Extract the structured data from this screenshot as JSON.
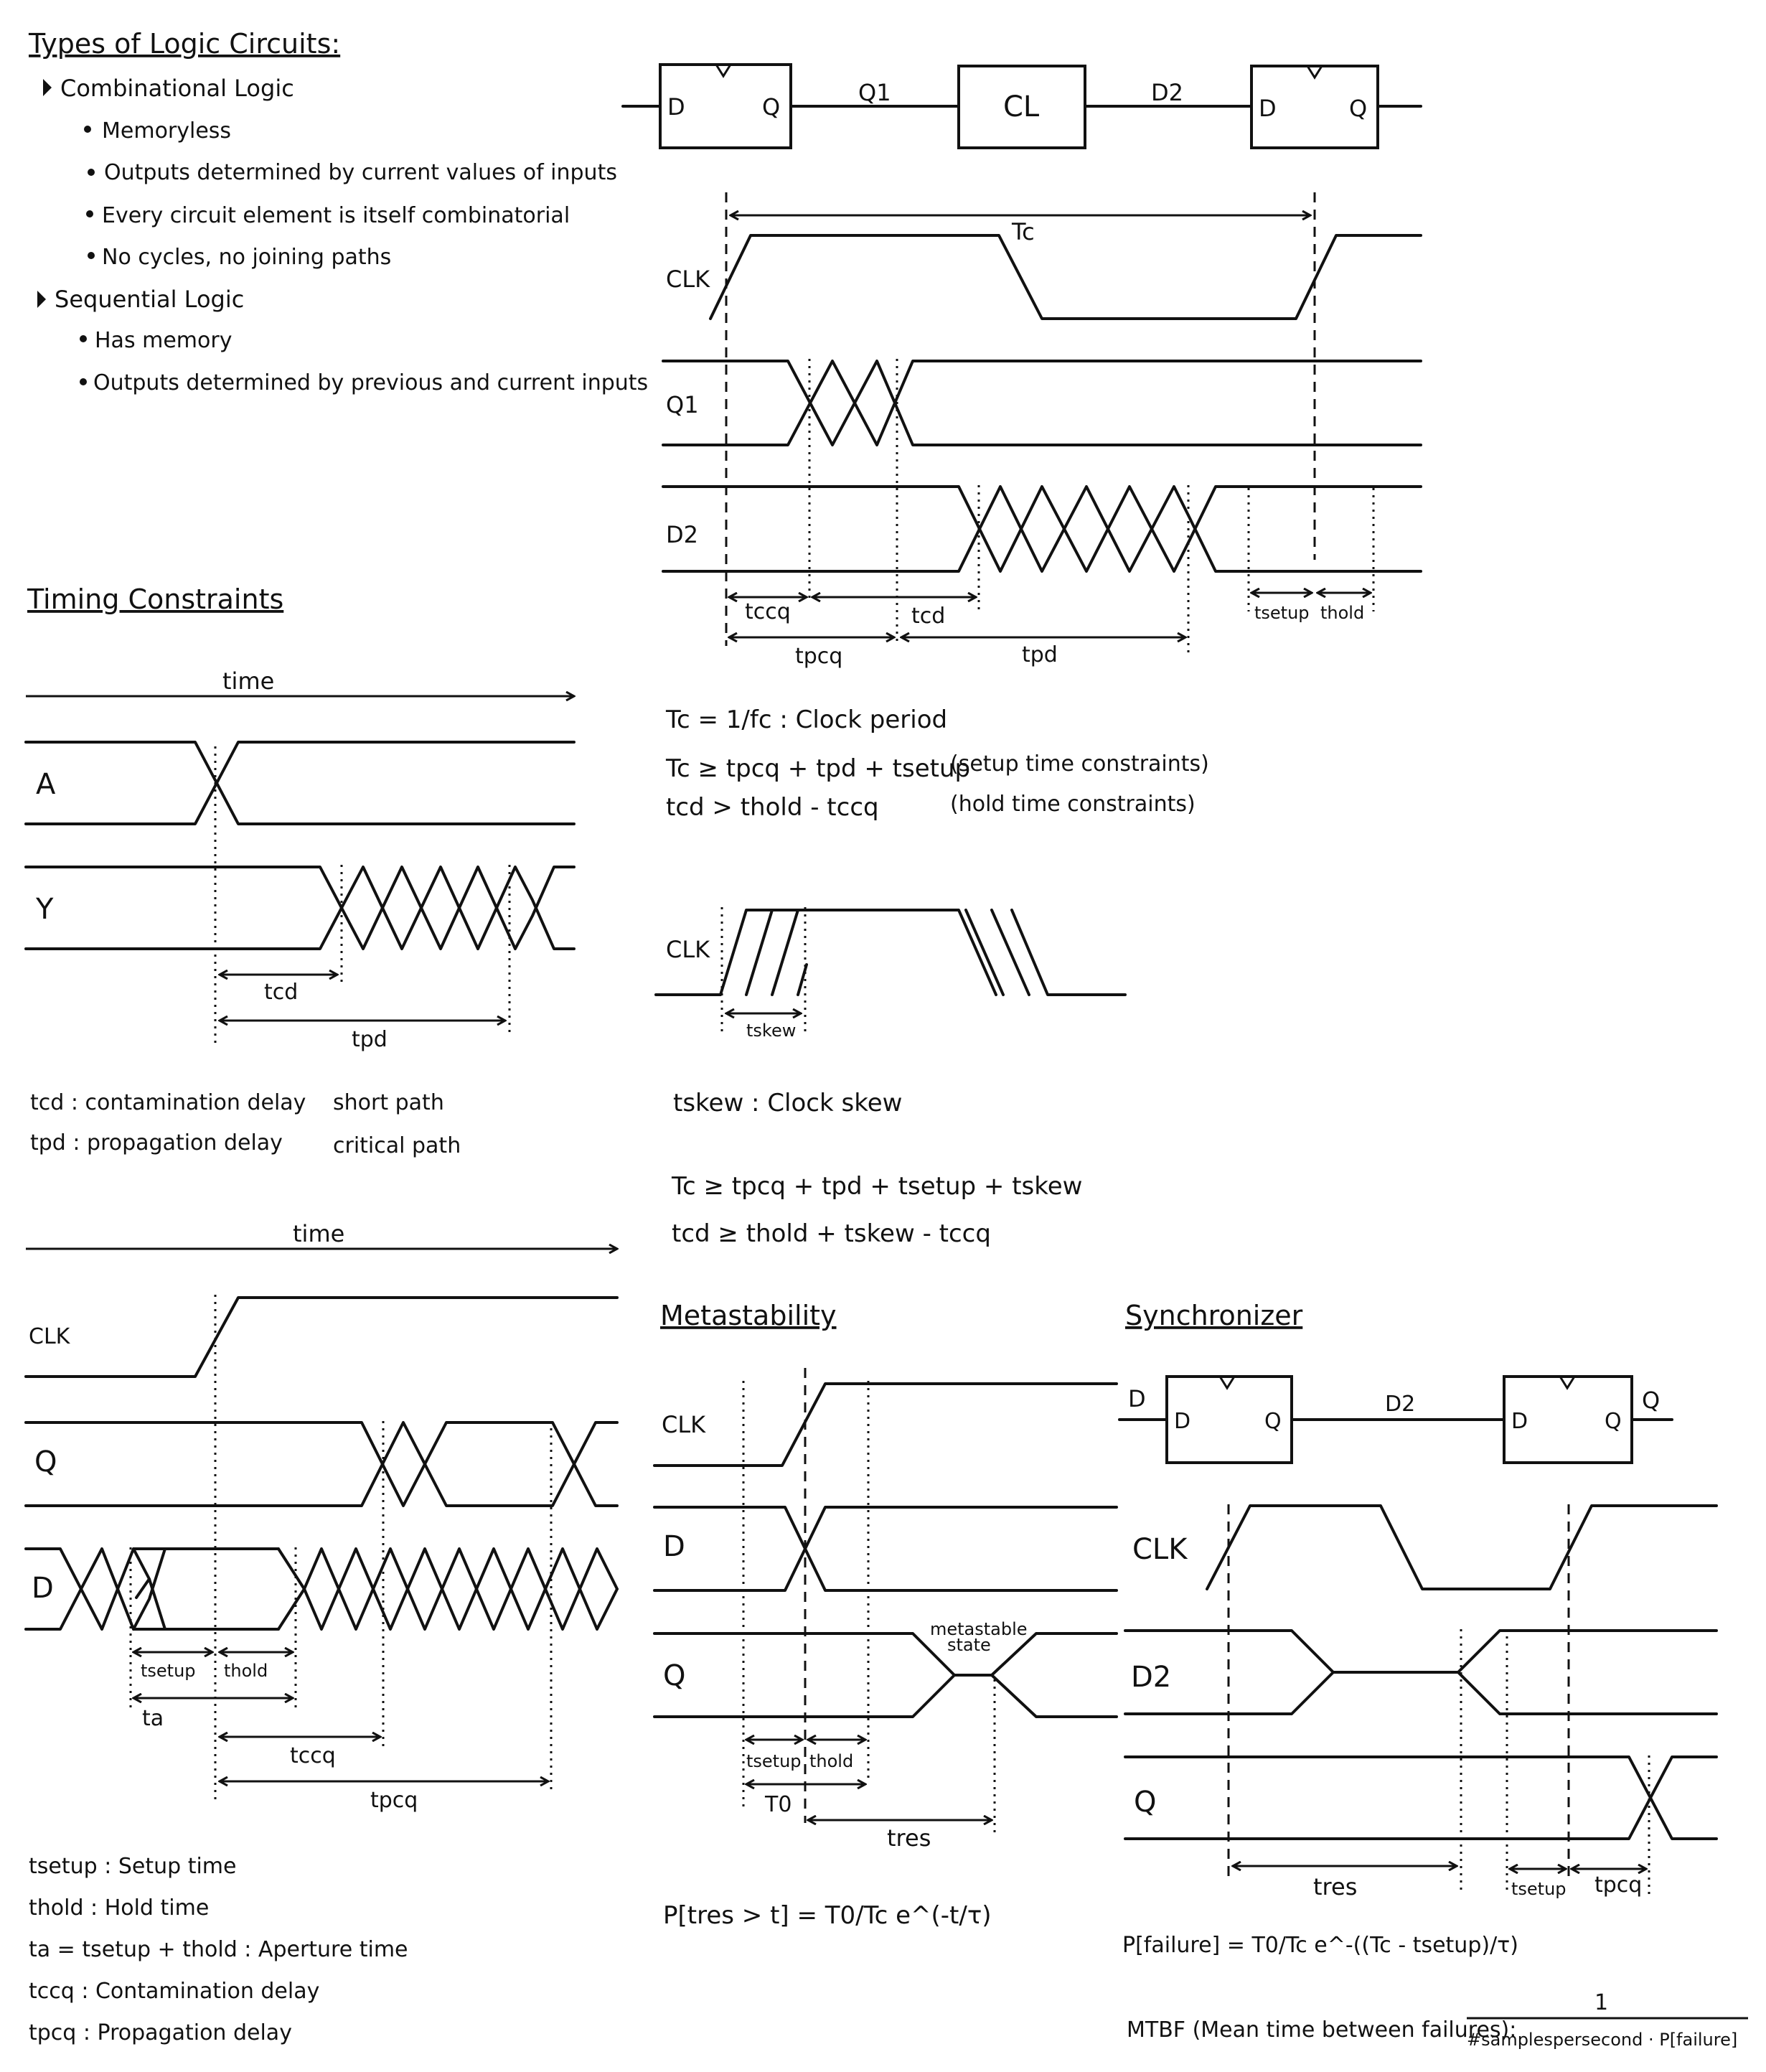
{
  "types": {
    "heading": "Types of Logic Circuits:",
    "combinational": {
      "title": "Combinational Logic",
      "bullets": [
        "Memoryless",
        "Outputs determined by current values of inputs",
        "Every circuit element is itself combinatorial",
        "No cycles, no joining paths"
      ]
    },
    "sequential": {
      "title": "Sequential Logic",
      "bullets": [
        "Has memory",
        "Outputs determined by previous and current inputs"
      ]
    }
  },
  "pipeline": {
    "ff_d": "D",
    "ff_q": "Q",
    "q1": "Q1",
    "logic": "CL",
    "d2": "D2",
    "signals": [
      "CLK",
      "Q1",
      "D2"
    ],
    "tc": "Tc",
    "labels": [
      "tccq",
      "tcd",
      "tpcq",
      "tpd",
      "tsetup",
      "thold"
    ],
    "eq1": "Tc = 1/fc : Clock period",
    "eq2": "Tc ≥ tpcq + tpd + tsetup",
    "eq2_note": "(setup time constraints)",
    "eq3": "tcd > thold - tccq",
    "eq3_note": "(hold time constraints)"
  },
  "timing": {
    "heading": "Timing Constraints",
    "time": "time",
    "signals": [
      "A",
      "Y"
    ],
    "tcd": "tcd",
    "tpd": "tpd",
    "def1": "tcd : contamination delay",
    "def1_note": "short path",
    "def2": "tpd : propagation delay",
    "def2_note": "critical path"
  },
  "skew": {
    "clk": "CLK",
    "tskew": "tskew",
    "def": "tskew : Clock skew",
    "eq1": "Tc ≥ tpcq + tpd + tsetup + tskew",
    "eq2": "tcd ≥ thold + tskew - tccq"
  },
  "setuphold": {
    "time": "time",
    "signals": [
      "CLK",
      "Q",
      "D"
    ],
    "labels": [
      "tsetup",
      "thold",
      "ta",
      "tccq",
      "tpcq"
    ],
    "defs": [
      "tsetup : Setup time",
      "thold : Hold time",
      "ta = tsetup + thold : Aperture time",
      "tccq : Contamination delay",
      "tpcq : Propagation delay"
    ]
  },
  "meta": {
    "heading": "Metastability",
    "signals": [
      "CLK",
      "D",
      "Q"
    ],
    "state": [
      "metastable",
      "state"
    ],
    "labels": [
      "tsetup",
      "thold",
      "T0",
      "tres"
    ],
    "formula": "P[tres > t] = T0/Tc e^(-t/τ)"
  },
  "sync": {
    "heading": "Synchronizer",
    "d_in": "D",
    "d2": "D2",
    "q_out": "Q",
    "signals": [
      "CLK",
      "D2",
      "Q"
    ],
    "labels": [
      "tres",
      "tsetup",
      "tpcq"
    ],
    "formula": "P[failure] = T0/Tc e^-((Tc - tsetup)/τ)",
    "mtbf": "MTBF (Mean time between failures):",
    "mtbf_num": "1",
    "mtbf_den": "#samplespersecond · P[failure]"
  }
}
